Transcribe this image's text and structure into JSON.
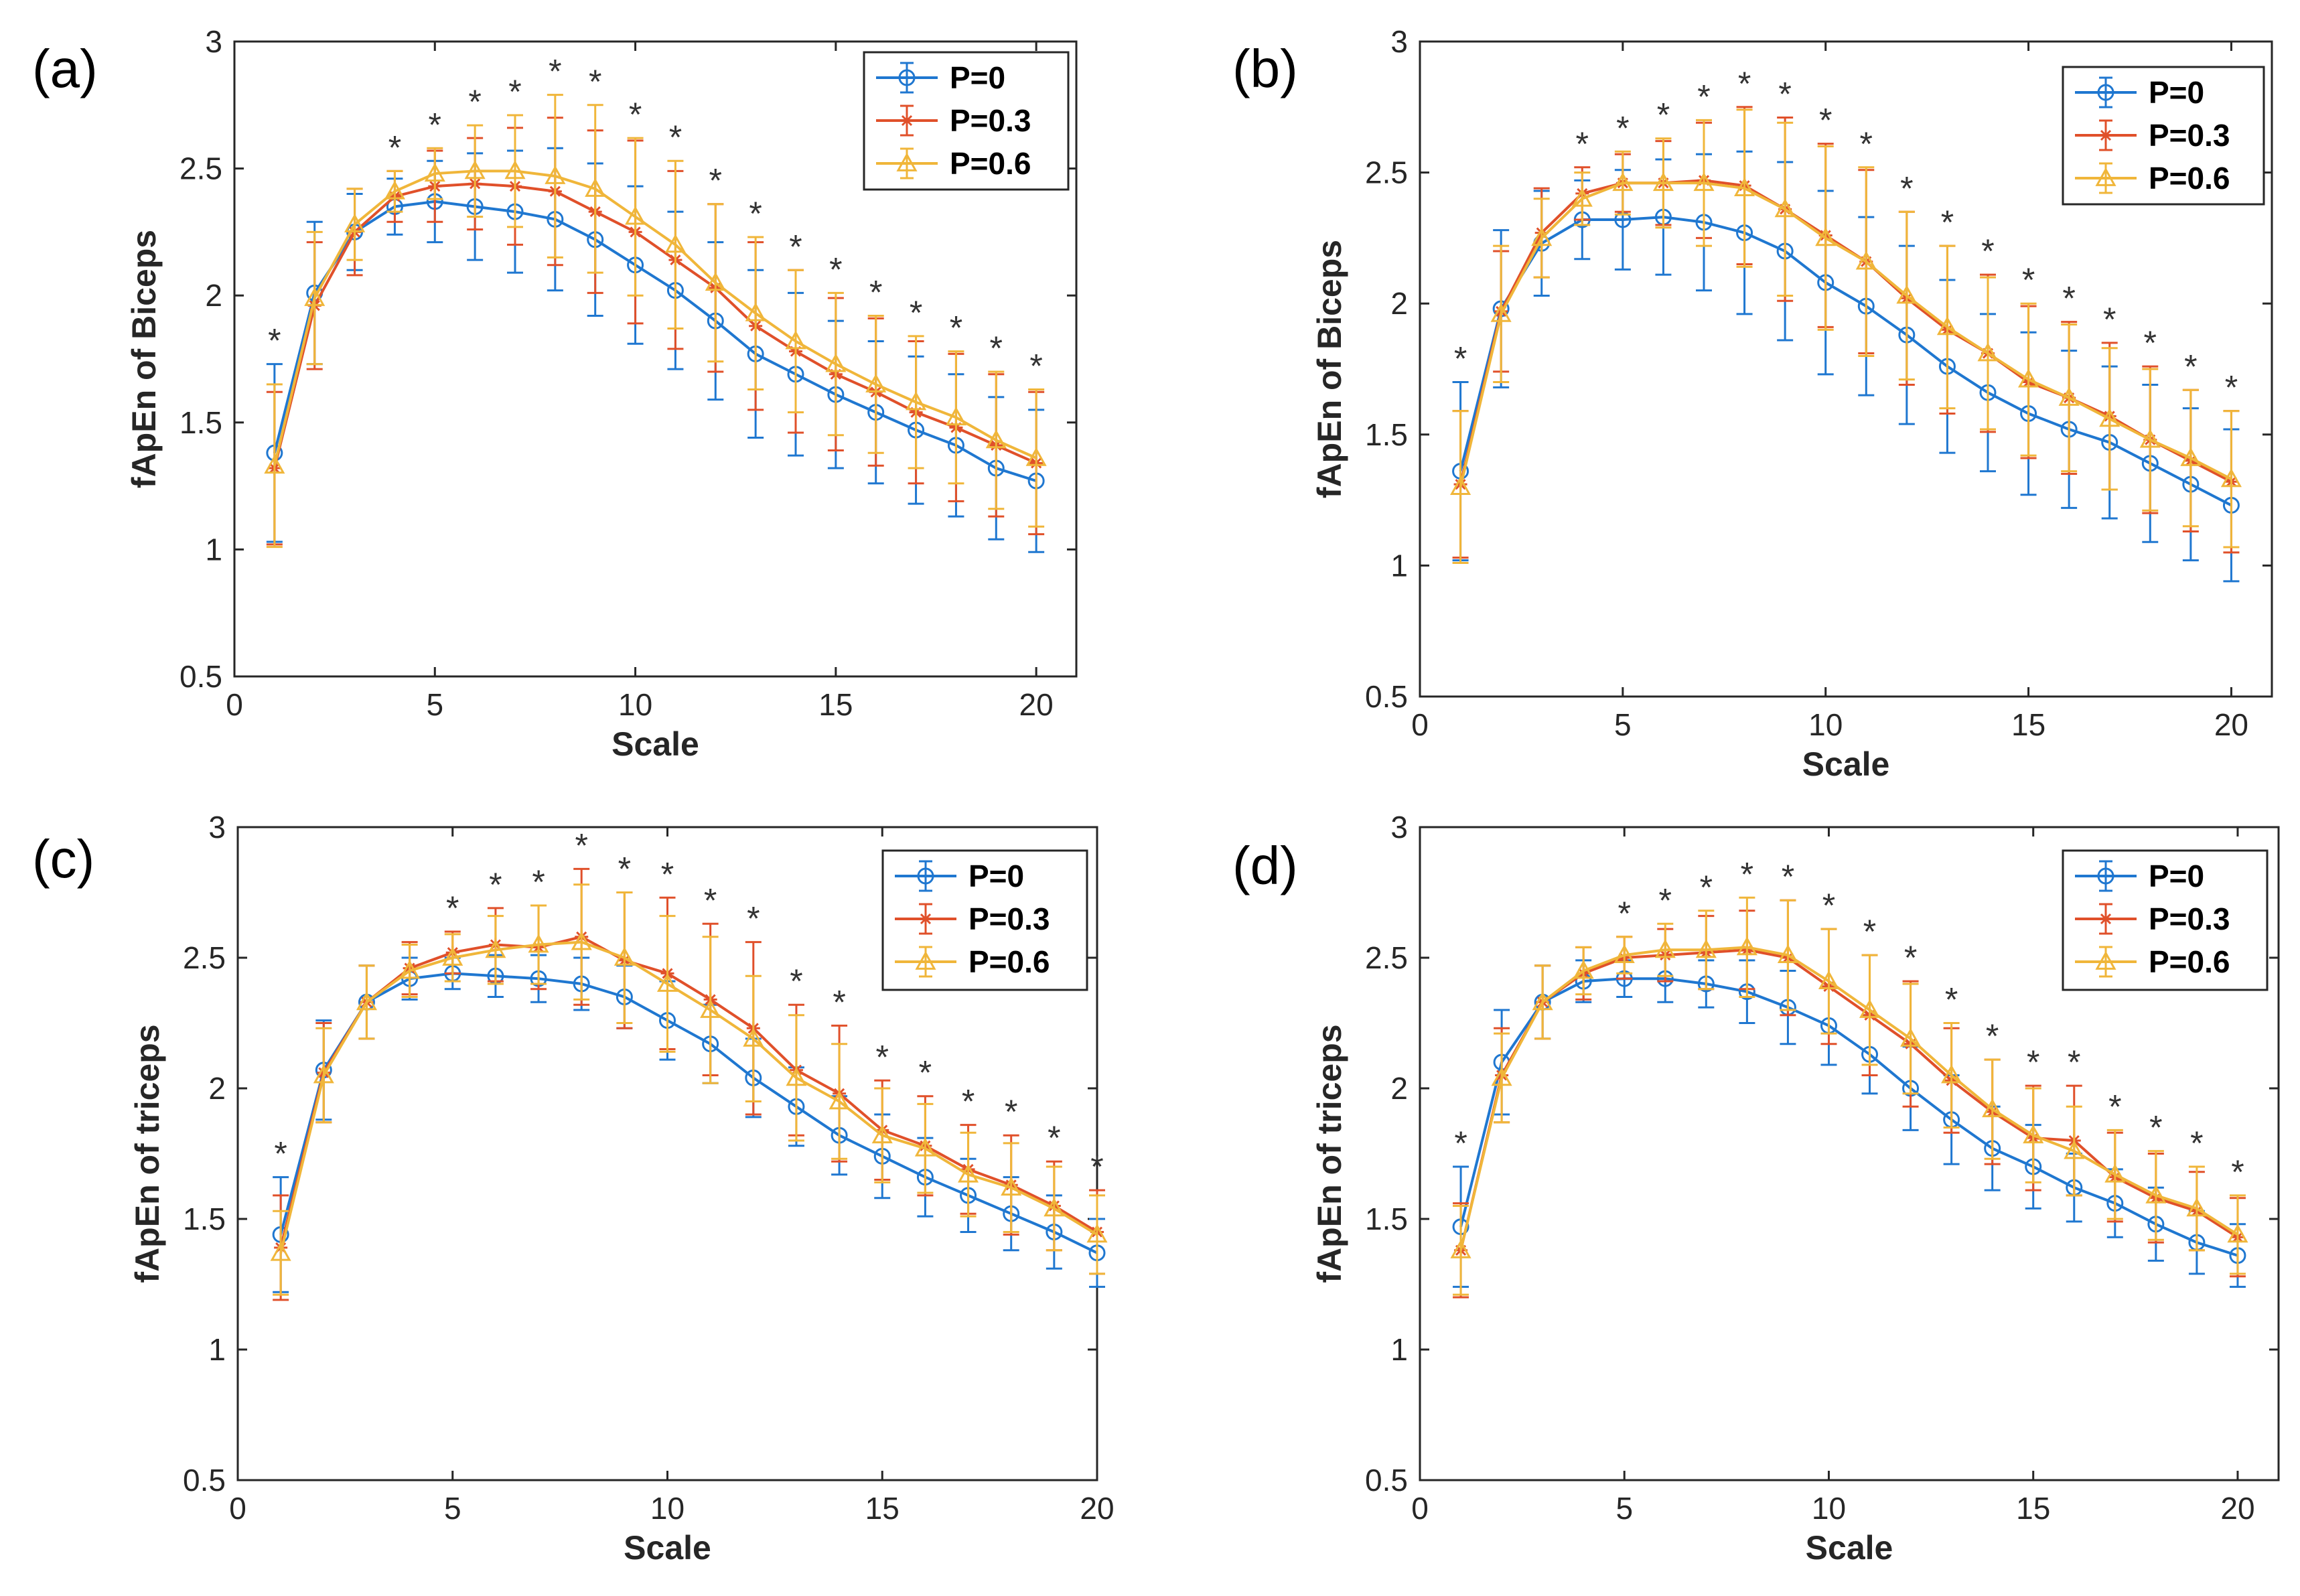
{
  "colors": {
    "p0": "#1f77d0",
    "p03": "#e0502a",
    "p06": "#f0b63a",
    "axis": "#262626"
  },
  "chart_data": [
    {
      "type": "line",
      "panel_label": "(a)",
      "xlabel": "Scale",
      "ylabel": "fApEn of Biceps",
      "xlim": [
        0,
        21
      ],
      "ylim": [
        0.5,
        3
      ],
      "x_ticks": [
        "0",
        "5",
        "10",
        "15",
        "20"
      ],
      "y_ticks": [
        "0.5",
        "1",
        "1.5",
        "2",
        "2.5",
        "3"
      ],
      "legend_position": "top-right",
      "x": [
        1,
        2,
        3,
        4,
        5,
        6,
        7,
        8,
        9,
        10,
        11,
        12,
        13,
        14,
        15,
        16,
        17,
        18,
        19,
        20
      ],
      "series": [
        {
          "name": "P=0",
          "marker": "circle",
          "values": [
            1.38,
            2.01,
            2.25,
            2.35,
            2.37,
            2.35,
            2.33,
            2.3,
            2.22,
            2.12,
            2.02,
            1.9,
            1.77,
            1.69,
            1.61,
            1.54,
            1.47,
            1.41,
            1.32,
            1.27
          ],
          "errors": [
            0.35,
            0.28,
            0.15,
            0.11,
            0.16,
            0.21,
            0.24,
            0.28,
            0.3,
            0.31,
            0.31,
            0.31,
            0.33,
            0.32,
            0.29,
            0.28,
            0.29,
            0.28,
            0.28,
            0.28
          ]
        },
        {
          "name": "P=0.3",
          "marker": "star",
          "values": [
            1.32,
            1.96,
            2.25,
            2.39,
            2.43,
            2.44,
            2.43,
            2.41,
            2.33,
            2.25,
            2.14,
            2.03,
            1.88,
            1.78,
            1.69,
            1.62,
            1.54,
            1.48,
            1.41,
            1.34
          ],
          "errors": [
            0.3,
            0.25,
            0.17,
            0.1,
            0.14,
            0.18,
            0.23,
            0.29,
            0.32,
            0.36,
            0.35,
            0.33,
            0.33,
            0.32,
            0.3,
            0.29,
            0.28,
            0.29,
            0.28,
            0.28
          ]
        },
        {
          "name": "P=0.6",
          "marker": "triangle",
          "values": [
            1.33,
            1.99,
            2.28,
            2.41,
            2.48,
            2.49,
            2.49,
            2.47,
            2.42,
            2.31,
            2.2,
            2.05,
            1.93,
            1.82,
            1.73,
            1.65,
            1.58,
            1.52,
            1.43,
            1.36
          ],
          "errors": [
            0.32,
            0.26,
            0.14,
            0.08,
            0.1,
            0.18,
            0.22,
            0.32,
            0.33,
            0.31,
            0.33,
            0.31,
            0.3,
            0.28,
            0.28,
            0.27,
            0.26,
            0.26,
            0.27,
            0.27
          ]
        }
      ],
      "stars_at": [
        1,
        4,
        5,
        6,
        7,
        8,
        9,
        10,
        11,
        12,
        13,
        14,
        15,
        16,
        17,
        18,
        19,
        20
      ],
      "star_symbol": "*"
    },
    {
      "type": "line",
      "panel_label": "(b)",
      "xlabel": "Scale",
      "ylabel": "fApEn of Biceps",
      "xlim": [
        0,
        21
      ],
      "ylim": [
        0.5,
        3
      ],
      "x_ticks": [
        "0",
        "5",
        "10",
        "15",
        "20"
      ],
      "y_ticks": [
        "0.5",
        "1",
        "1.5",
        "2",
        "2.5",
        "3"
      ],
      "legend_position": "top-right",
      "x": [
        1,
        2,
        3,
        4,
        5,
        6,
        7,
        8,
        9,
        10,
        11,
        12,
        13,
        14,
        15,
        16,
        17,
        18,
        19,
        20
      ],
      "series": [
        {
          "name": "P=0",
          "marker": "circle",
          "values": [
            1.36,
            1.98,
            2.23,
            2.32,
            2.32,
            2.33,
            2.31,
            2.27,
            2.2,
            2.08,
            1.99,
            1.88,
            1.76,
            1.66,
            1.58,
            1.52,
            1.47,
            1.39,
            1.31,
            1.23
          ],
          "errors": [
            0.34,
            0.3,
            0.2,
            0.15,
            0.19,
            0.22,
            0.26,
            0.31,
            0.34,
            0.35,
            0.34,
            0.34,
            0.33,
            0.3,
            0.31,
            0.3,
            0.29,
            0.3,
            0.29,
            0.29
          ]
        },
        {
          "name": "P=0.3",
          "marker": "star",
          "values": [
            1.31,
            1.97,
            2.27,
            2.42,
            2.46,
            2.46,
            2.47,
            2.45,
            2.36,
            2.26,
            2.16,
            2.02,
            1.9,
            1.81,
            1.7,
            1.64,
            1.57,
            1.48,
            1.4,
            1.32
          ],
          "errors": [
            0.28,
            0.23,
            0.17,
            0.1,
            0.11,
            0.16,
            0.22,
            0.3,
            0.35,
            0.35,
            0.35,
            0.33,
            0.32,
            0.3,
            0.29,
            0.29,
            0.28,
            0.28,
            0.27,
            0.27
          ]
        },
        {
          "name": "P=0.6",
          "marker": "triangle",
          "values": [
            1.3,
            1.96,
            2.25,
            2.4,
            2.46,
            2.46,
            2.46,
            2.44,
            2.36,
            2.25,
            2.16,
            2.03,
            1.91,
            1.81,
            1.71,
            1.64,
            1.56,
            1.48,
            1.41,
            1.33
          ],
          "errors": [
            0.29,
            0.26,
            0.15,
            0.1,
            0.12,
            0.17,
            0.24,
            0.3,
            0.33,
            0.35,
            0.36,
            0.32,
            0.31,
            0.29,
            0.29,
            0.28,
            0.27,
            0.27,
            0.26,
            0.26
          ]
        }
      ],
      "stars_at": [
        1,
        4,
        5,
        6,
        7,
        8,
        9,
        10,
        11,
        12,
        13,
        14,
        15,
        16,
        17,
        18,
        19,
        20
      ],
      "star_symbol": "*"
    },
    {
      "type": "line",
      "panel_label": "(c)",
      "xlabel": "Scale",
      "ylabel": "fApEn of triceps",
      "xlim": [
        0,
        20
      ],
      "ylim": [
        0.5,
        3
      ],
      "x_ticks": [
        "0",
        "5",
        "10",
        "15",
        "20"
      ],
      "y_ticks": [
        "0.5",
        "1",
        "1.5",
        "2",
        "2.5",
        "3"
      ],
      "legend_position": "top-right",
      "x": [
        1,
        2,
        3,
        4,
        5,
        6,
        7,
        8,
        9,
        10,
        11,
        12,
        13,
        14,
        15,
        16,
        17,
        18,
        19,
        20
      ],
      "series": [
        {
          "name": "P=0",
          "marker": "circle",
          "values": [
            1.44,
            2.07,
            2.33,
            2.42,
            2.44,
            2.43,
            2.42,
            2.4,
            2.35,
            2.26,
            2.17,
            2.04,
            1.93,
            1.82,
            1.74,
            1.66,
            1.59,
            1.52,
            1.45,
            1.37
          ],
          "errors": [
            0.22,
            0.19,
            0.14,
            0.08,
            0.06,
            0.08,
            0.09,
            0.1,
            0.12,
            0.15,
            0.15,
            0.15,
            0.15,
            0.15,
            0.16,
            0.15,
            0.14,
            0.14,
            0.14,
            0.13
          ]
        },
        {
          "name": "P=0.3",
          "marker": "star",
          "values": [
            1.39,
            2.06,
            2.33,
            2.46,
            2.52,
            2.55,
            2.54,
            2.58,
            2.49,
            2.44,
            2.34,
            2.23,
            2.07,
            1.98,
            1.84,
            1.78,
            1.69,
            1.63,
            1.55,
            1.45
          ],
          "errors": [
            0.2,
            0.19,
            0.14,
            0.1,
            0.08,
            0.14,
            0.16,
            0.26,
            0.26,
            0.29,
            0.29,
            0.33,
            0.25,
            0.26,
            0.19,
            0.19,
            0.17,
            0.19,
            0.17,
            0.16
          ]
        },
        {
          "name": "P=0.6",
          "marker": "triangle",
          "values": [
            1.37,
            2.05,
            2.33,
            2.45,
            2.5,
            2.53,
            2.55,
            2.56,
            2.5,
            2.4,
            2.3,
            2.19,
            2.04,
            1.95,
            1.82,
            1.77,
            1.67,
            1.62,
            1.54,
            1.44
          ],
          "errors": [
            0.16,
            0.18,
            0.14,
            0.1,
            0.09,
            0.13,
            0.15,
            0.22,
            0.25,
            0.26,
            0.28,
            0.24,
            0.24,
            0.22,
            0.18,
            0.17,
            0.16,
            0.17,
            0.16,
            0.15
          ]
        }
      ],
      "stars_at": [
        1,
        5,
        6,
        7,
        8,
        9,
        10,
        11,
        12,
        13,
        14,
        15,
        16,
        17,
        18,
        19,
        20
      ],
      "star_symbol": "*"
    },
    {
      "type": "line",
      "panel_label": "(d)",
      "xlabel": "Scale",
      "ylabel": "fApEn of triceps",
      "xlim": [
        0,
        21
      ],
      "ylim": [
        0.5,
        3
      ],
      "x_ticks": [
        "0",
        "5",
        "10",
        "15",
        "20"
      ],
      "y_ticks": [
        "0.5",
        "1",
        "1.5",
        "2",
        "2.5",
        "3"
      ],
      "legend_position": "top-right",
      "x": [
        1,
        2,
        3,
        4,
        5,
        6,
        7,
        8,
        9,
        10,
        11,
        12,
        13,
        14,
        15,
        16,
        17,
        18,
        19,
        20
      ],
      "series": [
        {
          "name": "P=0",
          "marker": "circle",
          "values": [
            1.47,
            2.1,
            2.33,
            2.41,
            2.42,
            2.42,
            2.4,
            2.37,
            2.31,
            2.24,
            2.13,
            2.0,
            1.88,
            1.77,
            1.7,
            1.62,
            1.56,
            1.48,
            1.41,
            1.36
          ],
          "errors": [
            0.23,
            0.2,
            0.14,
            0.08,
            0.07,
            0.09,
            0.09,
            0.12,
            0.14,
            0.15,
            0.15,
            0.16,
            0.17,
            0.16,
            0.16,
            0.13,
            0.13,
            0.14,
            0.12,
            0.12
          ]
        },
        {
          "name": "P=0.3",
          "marker": "star",
          "values": [
            1.38,
            2.05,
            2.33,
            2.44,
            2.5,
            2.51,
            2.52,
            2.53,
            2.5,
            2.39,
            2.28,
            2.17,
            2.03,
            1.91,
            1.81,
            1.8,
            1.66,
            1.58,
            1.53,
            1.43
          ],
          "errors": [
            0.18,
            0.18,
            0.14,
            0.1,
            0.08,
            0.1,
            0.14,
            0.15,
            0.22,
            0.22,
            0.23,
            0.24,
            0.2,
            0.2,
            0.2,
            0.21,
            0.17,
            0.17,
            0.15,
            0.15
          ]
        },
        {
          "name": "P=0.6",
          "marker": "triangle",
          "values": [
            1.38,
            2.04,
            2.33,
            2.45,
            2.51,
            2.53,
            2.53,
            2.54,
            2.51,
            2.41,
            2.3,
            2.19,
            2.05,
            1.92,
            1.82,
            1.76,
            1.67,
            1.59,
            1.54,
            1.44
          ],
          "errors": [
            0.17,
            0.17,
            0.14,
            0.09,
            0.07,
            0.1,
            0.15,
            0.19,
            0.21,
            0.2,
            0.21,
            0.21,
            0.2,
            0.19,
            0.18,
            0.17,
            0.17,
            0.17,
            0.16,
            0.15
          ]
        }
      ],
      "stars_at": [
        1,
        5,
        6,
        7,
        8,
        9,
        10,
        11,
        12,
        13,
        14,
        15,
        16,
        17,
        18,
        19,
        20
      ],
      "star_symbol": "*"
    }
  ]
}
